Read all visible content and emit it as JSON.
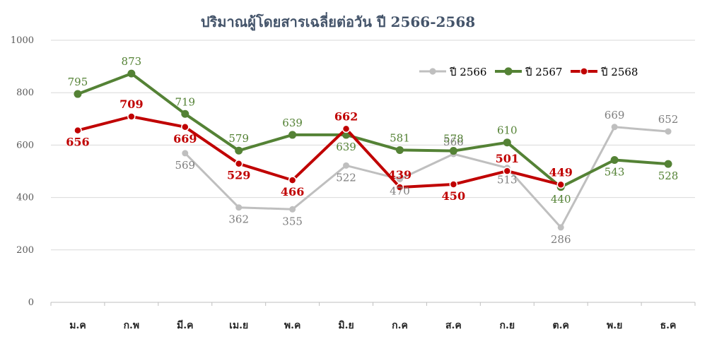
{
  "chart_data": {
    "type": "line",
    "title": "ปริมาณผู้โดยสารเฉลี่ยต่อวัน ปี 2566-2568",
    "categories": [
      "ม.ค",
      "ก.พ",
      "มี.ค",
      "เม.ย",
      "พ.ค",
      "มิ.ย",
      "ก.ค",
      "ส.ค",
      "ก.ย",
      "ต.ค",
      "พ.ย",
      "ธ.ค"
    ],
    "ylim": [
      0,
      1000
    ],
    "yticks": [
      0,
      200,
      400,
      600,
      800,
      1000
    ],
    "grid": true,
    "legend_position": "top-right",
    "series": [
      {
        "name": "ปี 2566",
        "color": "#bfbfbf",
        "label_color": "#7f7f7f",
        "values": [
          null,
          null,
          569,
          362,
          355,
          522,
          470,
          566,
          513,
          286,
          669,
          652
        ]
      },
      {
        "name": "ปี 2567",
        "color": "#548235",
        "label_color": "#548235",
        "values": [
          795,
          873,
          719,
          579,
          639,
          639,
          581,
          578,
          610,
          440,
          543,
          528
        ]
      },
      {
        "name": "ปี 2568",
        "color": "#c00000",
        "label_color": "#c00000",
        "values": [
          656,
          709,
          669,
          529,
          466,
          662,
          439,
          450,
          501,
          449,
          null,
          null
        ]
      }
    ]
  }
}
